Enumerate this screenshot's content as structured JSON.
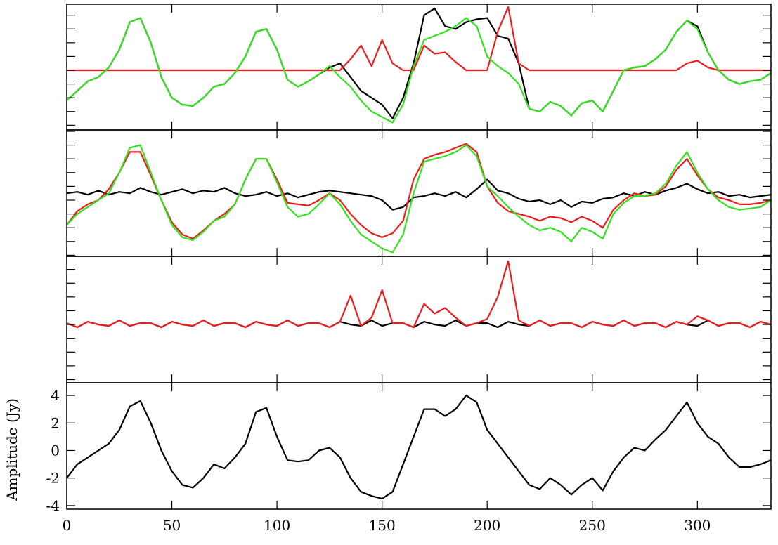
{
  "chart_data": [
    {
      "type": "line",
      "xlim": [
        0,
        335
      ],
      "ylim": [
        -4.34,
        4.8
      ],
      "yticks": [
        -4,
        -3,
        -2,
        -1,
        0,
        1,
        2,
        3,
        4
      ],
      "xticks": [
        0,
        50,
        100,
        150,
        200,
        250,
        300
      ],
      "tick_labels": false,
      "x": [
        0,
        5,
        10,
        15,
        20,
        25,
        30,
        35,
        40,
        45,
        50,
        55,
        60,
        65,
        70,
        75,
        80,
        85,
        90,
        95,
        100,
        105,
        110,
        115,
        120,
        125,
        130,
        135,
        140,
        145,
        150,
        155,
        160,
        165,
        170,
        175,
        180,
        185,
        190,
        195,
        200,
        205,
        210,
        215,
        220,
        225,
        230,
        235,
        240,
        245,
        250,
        255,
        260,
        265,
        270,
        275,
        280,
        285,
        290,
        295,
        300,
        305,
        310,
        315,
        320,
        325,
        330,
        335
      ],
      "series": [
        {
          "color": "#000000",
          "values": [
            -2.2,
            -1.5,
            -0.8,
            -0.5,
            0.2,
            1.5,
            3.5,
            3.8,
            2,
            -0.5,
            -2,
            -2.5,
            -2.6,
            -2,
            -1.2,
            -1,
            -0.2,
            1,
            2.8,
            3,
            1.5,
            -0.7,
            -1.2,
            -0.8,
            -0.3,
            0.2,
            0.5,
            -0.5,
            -1.5,
            -2,
            -2.5,
            -3.5,
            -2,
            0.5,
            4,
            4.5,
            3.2,
            3,
            3.5,
            3.7,
            3.8,
            2.5,
            2.3,
            0.5,
            -2.8,
            -3,
            -2.3,
            -2.6,
            -3.3,
            -2.4,
            -2.2,
            -3,
            -1.5,
            0,
            0.2,
            0.3,
            0.8,
            1.5,
            2.8,
            3.6,
            3.2,
            1.3,
            0,
            -0.7,
            -1,
            -0.8,
            -0.7,
            -0.2
          ]
        },
        {
          "color": "#ee1c1c",
          "values": [
            0,
            0,
            0,
            0,
            0,
            0,
            0,
            0,
            0,
            0,
            0,
            0,
            0,
            0,
            0,
            0,
            0,
            0,
            0,
            0,
            0,
            0,
            0,
            0,
            0,
            0,
            0,
            0.8,
            1.8,
            0.3,
            2.2,
            0.5,
            0,
            0,
            1.8,
            1.2,
            1.3,
            0.6,
            0,
            0,
            0,
            2.8,
            4.6,
            0.5,
            0,
            0,
            0,
            0,
            0,
            0,
            0,
            0,
            0,
            0,
            0,
            0,
            0,
            0,
            0,
            0.5,
            0.7,
            0.2,
            0,
            0,
            0,
            0,
            0,
            0
          ]
        },
        {
          "color": "#33e21f",
          "values": [
            -2.2,
            -1.5,
            -0.8,
            -0.5,
            0.2,
            1.5,
            3.5,
            3.8,
            2,
            -0.5,
            -2,
            -2.5,
            -2.6,
            -2,
            -1.2,
            -1,
            -0.2,
            1,
            2.8,
            3,
            1.5,
            -0.7,
            -1.2,
            -0.8,
            -0.3,
            0.3,
            -0.5,
            -1.2,
            -2.2,
            -3,
            -3.4,
            -3.8,
            -2.5,
            0.3,
            2.2,
            2.5,
            2.8,
            3.2,
            3.8,
            3.2,
            1,
            0.3,
            -0.2,
            -1,
            -2.8,
            -3,
            -2.3,
            -2.6,
            -3.3,
            -2.4,
            -2.2,
            -3,
            -1.5,
            0,
            0.2,
            0.3,
            0.8,
            1.5,
            2.8,
            3.6,
            3,
            1.3,
            0,
            -0.7,
            -1,
            -0.8,
            -0.7,
            -0.2
          ]
        }
      ]
    },
    {
      "type": "line",
      "xlim": [
        0,
        335
      ],
      "ylim": [
        -4.08,
        5.1
      ],
      "yticks": [
        -4,
        -3,
        -2,
        -1,
        0,
        1,
        2,
        3,
        4,
        5
      ],
      "xticks": [
        0,
        50,
        100,
        150,
        200,
        250,
        300
      ],
      "tick_labels": false,
      "x": [
        0,
        5,
        10,
        15,
        20,
        25,
        30,
        35,
        40,
        45,
        50,
        55,
        60,
        65,
        70,
        75,
        80,
        85,
        90,
        95,
        100,
        105,
        110,
        115,
        120,
        125,
        130,
        135,
        140,
        145,
        150,
        155,
        160,
        165,
        170,
        175,
        180,
        185,
        190,
        195,
        200,
        205,
        210,
        215,
        220,
        225,
        230,
        235,
        240,
        245,
        250,
        255,
        260,
        265,
        270,
        275,
        280,
        285,
        290,
        295,
        300,
        305,
        310,
        315,
        320,
        325,
        330,
        335
      ],
      "series": [
        {
          "color": "#000000",
          "values": [
            0.5,
            0.6,
            0.4,
            0.7,
            0.4,
            0.6,
            0.5,
            0.9,
            0.6,
            0.4,
            0.6,
            0.8,
            0.5,
            0.7,
            0.6,
            0.9,
            0.5,
            0.3,
            0.4,
            0.6,
            0.3,
            0.5,
            0.2,
            0.4,
            0.6,
            0.7,
            0.6,
            0.5,
            0.4,
            0.3,
            0,
            -0.7,
            -0.5,
            0.2,
            0.3,
            0.5,
            0.3,
            0.6,
            0.2,
            0.8,
            1.5,
            0.7,
            0.5,
            0.1,
            -0.1,
            0,
            -0.3,
            0,
            -0.5,
            -0.1,
            -0.2,
            0.1,
            0.2,
            0.5,
            0.3,
            0.6,
            0.4,
            0.7,
            0.9,
            1.2,
            0.8,
            0.5,
            0.6,
            0.3,
            0.4,
            0.2,
            0.3,
            0.4
          ]
        },
        {
          "color": "#ee1c1c",
          "values": [
            -1.8,
            -0.8,
            -0.3,
            0,
            0.8,
            2,
            3.5,
            3.5,
            1.8,
            0,
            -1.6,
            -2.5,
            -2.8,
            -2.2,
            -1.5,
            -1,
            -0.3,
            1.5,
            3,
            3,
            1.5,
            -0.2,
            -0.3,
            -0.4,
            0,
            0.5,
            0,
            -1,
            -1.8,
            -2.4,
            -2.7,
            -2.4,
            -1.5,
            1.5,
            3,
            3.3,
            3.5,
            3.8,
            4.1,
            3.5,
            1,
            -0.2,
            -0.8,
            -1,
            -1.2,
            -1.5,
            -1.2,
            -1.3,
            -1.6,
            -1.2,
            -1.5,
            -2,
            -0.7,
            0,
            0.5,
            0.3,
            0.4,
            1,
            2.2,
            3,
            1.8,
            0.8,
            0.2,
            0,
            -0.3,
            -0.3,
            -0.2,
            0
          ]
        },
        {
          "color": "#33e21f",
          "values": [
            -1.8,
            -1,
            -0.5,
            0,
            0.5,
            2,
            3.8,
            4,
            2,
            0,
            -1.8,
            -2.7,
            -2.9,
            -2.3,
            -1.5,
            -1.2,
            -0.3,
            1.5,
            3,
            3,
            1.3,
            -0.5,
            -1.2,
            -1,
            -0.3,
            0.5,
            -0.3,
            -1.5,
            -2.5,
            -3,
            -3.5,
            -3.8,
            -2.5,
            0.5,
            2.8,
            3,
            3.2,
            3.5,
            4,
            3.2,
            1,
            0.3,
            -0.5,
            -1.2,
            -1.8,
            -2.2,
            -2,
            -2.3,
            -3,
            -2,
            -2.3,
            -2.8,
            -1,
            -0.2,
            0.3,
            0.3,
            0.5,
            1.2,
            2.5,
            3.5,
            2,
            0.8,
            0,
            -0.5,
            -0.7,
            -0.6,
            -0.5,
            0
          ]
        }
      ]
    },
    {
      "type": "line",
      "xlim": [
        0,
        335
      ],
      "ylim": [
        -4.23,
        4.95
      ],
      "yticks": [
        -4,
        -3,
        -2,
        -1,
        0,
        1,
        2,
        3,
        4
      ],
      "xticks": [
        0,
        50,
        100,
        150,
        200,
        250,
        300
      ],
      "tick_labels": false,
      "x": [
        0,
        5,
        10,
        15,
        20,
        25,
        30,
        35,
        40,
        45,
        50,
        55,
        60,
        65,
        70,
        75,
        80,
        85,
        90,
        95,
        100,
        105,
        110,
        115,
        120,
        125,
        130,
        135,
        140,
        145,
        150,
        155,
        160,
        165,
        170,
        175,
        180,
        185,
        190,
        195,
        200,
        205,
        210,
        215,
        220,
        225,
        230,
        235,
        240,
        245,
        250,
        255,
        260,
        265,
        270,
        275,
        280,
        285,
        290,
        295,
        300,
        305,
        310,
        315,
        320,
        325,
        330,
        335
      ],
      "series": [
        {
          "color": "#000000",
          "values": [
            0.1,
            -0.2,
            0.2,
            0,
            -0.1,
            0.3,
            -0.1,
            0.1,
            0.1,
            -0.2,
            0.2,
            0,
            -0.1,
            0.3,
            -0.1,
            0.1,
            0.1,
            -0.2,
            0.2,
            0,
            -0.1,
            0.3,
            -0.1,
            0.1,
            0.1,
            -0.2,
            0.2,
            0,
            -0.1,
            0.3,
            -0.1,
            0.1,
            0.1,
            -0.2,
            0.2,
            0,
            -0.1,
            0.3,
            -0.1,
            0.1,
            0.1,
            -0.2,
            0.2,
            0,
            -0.1,
            0.3,
            -0.1,
            0.1,
            0.1,
            -0.2,
            0.2,
            0,
            -0.1,
            0.3,
            -0.1,
            0.1,
            0.1,
            -0.2,
            0.2,
            0,
            -0.1,
            0.3,
            -0.1,
            0.1,
            0.1,
            -0.2,
            0.2,
            0
          ]
        },
        {
          "color": "#ee1c1c",
          "values": [
            0.1,
            -0.2,
            0.2,
            0,
            -0.1,
            0.3,
            -0.1,
            0.1,
            0.1,
            -0.2,
            0.2,
            0,
            -0.1,
            0.3,
            -0.1,
            0.1,
            0.1,
            -0.2,
            0.2,
            0,
            -0.1,
            0.3,
            -0.1,
            0.1,
            0.1,
            -0.2,
            0.2,
            2.1,
            -0.1,
            0.5,
            2.5,
            0.1,
            0.1,
            -0.2,
            1.5,
            0.8,
            1.2,
            0.5,
            -0.1,
            0.1,
            0.4,
            2.0,
            4.6,
            0.3,
            -0.1,
            0.3,
            -0.1,
            0.1,
            0.1,
            -0.2,
            0.2,
            0,
            -0.1,
            0.3,
            -0.1,
            0.1,
            0.1,
            -0.2,
            0.2,
            0,
            0.6,
            0.3,
            -0.1,
            0.1,
            0.1,
            -0.2,
            0.2,
            0
          ]
        }
      ]
    },
    {
      "type": "line",
      "xlim": [
        0,
        335
      ],
      "ylim": [
        -4.26,
        4.92
      ],
      "yticks": [
        -4,
        -2,
        0,
        2,
        4
      ],
      "xticks": [
        0,
        50,
        100,
        150,
        200,
        250,
        300
      ],
      "tick_labels": true,
      "ylabel": "Amplitude (Jy)",
      "x": [
        0,
        5,
        10,
        15,
        20,
        25,
        30,
        35,
        40,
        45,
        50,
        55,
        60,
        65,
        70,
        75,
        80,
        85,
        90,
        95,
        100,
        105,
        110,
        115,
        120,
        125,
        130,
        135,
        140,
        145,
        150,
        155,
        160,
        165,
        170,
        175,
        180,
        185,
        190,
        195,
        200,
        205,
        210,
        215,
        220,
        225,
        230,
        235,
        240,
        245,
        250,
        255,
        260,
        265,
        270,
        275,
        280,
        285,
        290,
        295,
        300,
        305,
        310,
        315,
        320,
        325,
        330,
        335
      ],
      "series": [
        {
          "color": "#000000",
          "values": [
            -2,
            -1,
            -0.5,
            0,
            0.5,
            1.5,
            3.2,
            3.6,
            2,
            0,
            -1.5,
            -2.5,
            -2.7,
            -2,
            -1,
            -1.3,
            -0.5,
            0.5,
            2.8,
            3.1,
            1,
            -0.7,
            -0.8,
            -0.7,
            0,
            0.2,
            -0.5,
            -2,
            -3,
            -3.3,
            -3.5,
            -3,
            -1,
            1,
            3,
            3,
            2.5,
            3,
            4,
            3.5,
            1.5,
            0.5,
            -0.5,
            -1.5,
            -2.5,
            -2.8,
            -2,
            -2.5,
            -3.2,
            -2.5,
            -2,
            -2.9,
            -1.5,
            -0.5,
            0.2,
            0,
            0.8,
            1.5,
            2.5,
            3.5,
            2,
            1,
            0.5,
            -0.5,
            -1.2,
            -1.2,
            -1,
            -0.7
          ]
        }
      ]
    }
  ]
}
